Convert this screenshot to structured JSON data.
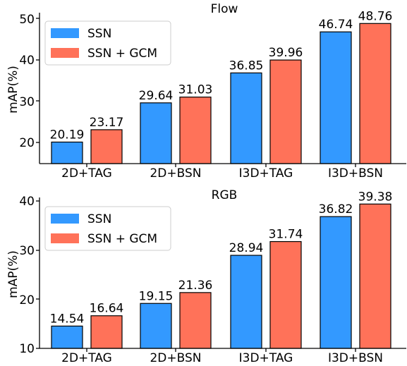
{
  "colors": {
    "ssn": "#3399ff",
    "ssn_gcm": "#ff7259",
    "edge": "#000000"
  },
  "chart_data": [
    {
      "type": "bar",
      "title": "Flow",
      "ylabel": "mAP(%)",
      "xlabel": "",
      "categories": [
        "2D+TAG",
        "2D+BSN",
        "I3D+TAG",
        "I3D+BSN"
      ],
      "ylim": [
        15,
        50
      ],
      "yticks": [
        "20",
        "30",
        "40",
        "50"
      ],
      "legend_position": "upper-left",
      "series": [
        {
          "name": "SSN",
          "values": [
            20.19,
            29.64,
            36.85,
            46.74
          ],
          "labels": [
            "20.19",
            "29.64",
            "36.85",
            "46.74"
          ]
        },
        {
          "name": "SSN + GCM",
          "values": [
            23.17,
            31.03,
            39.96,
            48.76
          ],
          "labels": [
            "23.17",
            "31.03",
            "39.96",
            "48.76"
          ]
        }
      ]
    },
    {
      "type": "bar",
      "title": "RGB",
      "ylabel": "mAP(%)",
      "xlabel": "",
      "categories": [
        "2D+TAG",
        "2D+BSN",
        "I3D+TAG",
        "I3D+BSN"
      ],
      "ylim": [
        10,
        40
      ],
      "yticks": [
        "10",
        "20",
        "30",
        "40"
      ],
      "legend_position": "upper-left",
      "series": [
        {
          "name": "SSN",
          "values": [
            14.54,
            19.15,
            28.94,
            36.82
          ],
          "labels": [
            "14.54",
            "19.15",
            "28.94",
            "36.82"
          ]
        },
        {
          "name": "SSN + GCM",
          "values": [
            16.64,
            21.36,
            31.74,
            39.38
          ],
          "labels": [
            "16.64",
            "21.36",
            "31.74",
            "39.38"
          ]
        }
      ]
    }
  ]
}
